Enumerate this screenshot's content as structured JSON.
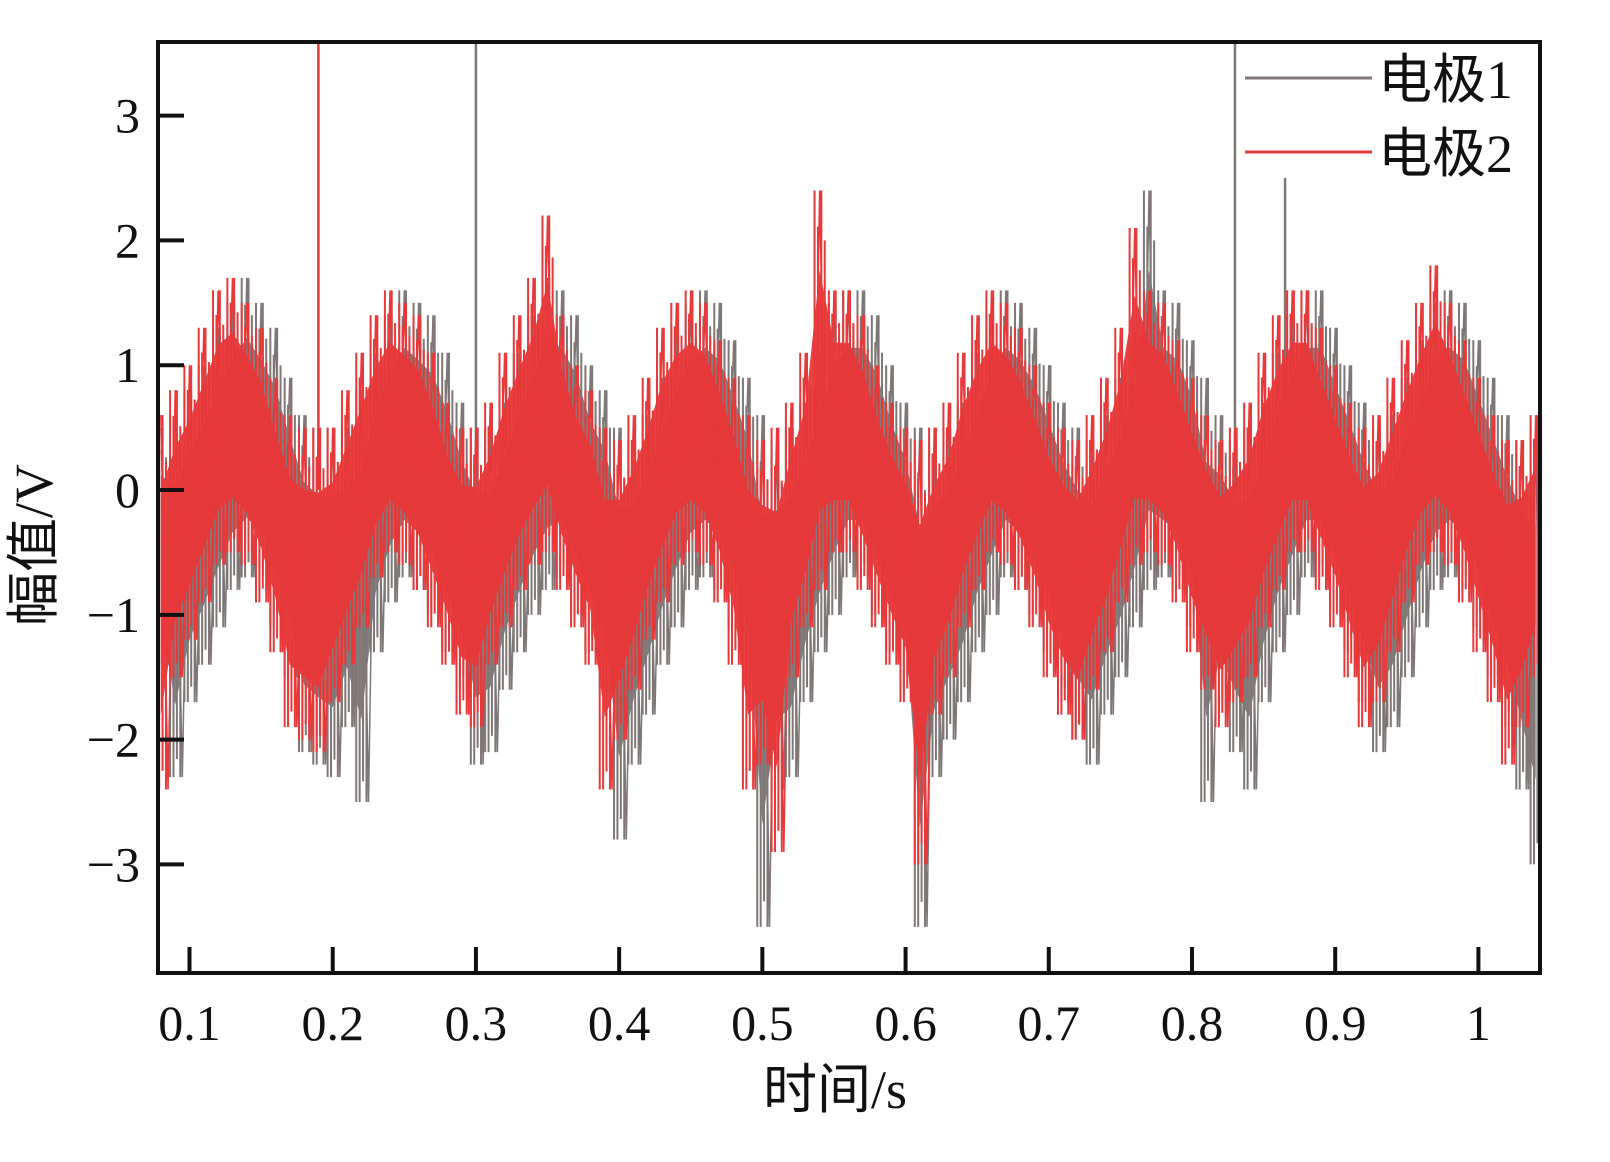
{
  "chart_data": {
    "type": "line",
    "title": "",
    "xlabel": "时间/s",
    "ylabel": "幅值/V",
    "xlim": [
      0.078,
      1.043
    ],
    "ylim": [
      -3.87,
      3.59
    ],
    "x_ticks": [
      0.1,
      0.2,
      0.3,
      0.4,
      0.5,
      0.6,
      0.7,
      0.8,
      0.9,
      1.0
    ],
    "x_tick_labels": [
      "0.1",
      "0.2",
      "0.3",
      "0.4",
      "0.5",
      "0.6",
      "0.7",
      "0.8",
      "0.9",
      "1"
    ],
    "y_ticks": [
      3,
      2,
      1,
      0,
      -1,
      -2,
      -3
    ],
    "y_tick_labels": [
      "3",
      "2",
      "1",
      "0",
      "−1",
      "−2",
      "−3"
    ],
    "grid": false,
    "legend_position": "top-right",
    "x_start": 0.08,
    "x_step": 0.01,
    "series": [
      {
        "name": "电极1",
        "color": "#7f7776",
        "envelope_max": [
          0.5,
          0.6,
          0.8,
          1.0,
          1.3,
          1.5,
          1.7,
          1.5,
          1.3,
          0.9,
          0.6,
          0.5,
          0.5,
          0.5,
          0.8,
          1.1,
          1.4,
          1.6,
          1.5,
          1.4,
          1.1,
          0.7,
          0.5,
          0.5,
          0.7,
          1.1,
          1.4,
          1.7,
          1.6,
          1.4,
          1.0,
          0.8,
          0.5,
          0.4,
          0.6,
          0.9,
          1.3,
          1.5,
          1.6,
          1.5,
          1.2,
          0.9,
          0.6,
          0.4,
          0.5,
          0.7,
          1.1,
          1.5,
          1.6,
          1.6,
          1.4,
          1.0,
          0.7,
          0.5,
          0.4,
          0.5,
          0.7,
          1.1,
          1.4,
          1.6,
          1.5,
          1.3,
          1.0,
          0.7,
          0.5,
          0.4,
          0.6,
          0.9,
          1.3,
          2.4,
          1.6,
          1.5,
          1.2,
          0.9,
          0.6,
          0.4,
          0.5,
          0.7,
          1.1,
          1.4,
          1.6,
          1.6,
          1.3,
          1.0,
          0.7,
          0.5,
          0.6,
          0.9,
          1.2,
          1.5,
          1.6,
          1.5,
          1.2,
          0.9,
          0.6,
          0.4,
          0.4
        ],
        "envelope_min": [
          -1.4,
          -2.3,
          -1.7,
          -1.4,
          -1.1,
          -0.8,
          -0.7,
          -0.8,
          -1.1,
          -1.5,
          -2.1,
          -2.2,
          -2.3,
          -1.9,
          -2.5,
          -1.3,
          -0.9,
          -0.7,
          -0.8,
          -1.0,
          -1.3,
          -1.6,
          -2.2,
          -2.1,
          -1.6,
          -1.3,
          -1.0,
          -0.8,
          -0.7,
          -1.0,
          -1.3,
          -1.6,
          -2.8,
          -2.2,
          -1.8,
          -1.4,
          -1.1,
          -0.8,
          -0.7,
          -0.8,
          -1.1,
          -1.6,
          -3.5,
          -2.4,
          -2.3,
          -1.7,
          -1.3,
          -1.0,
          -0.7,
          -0.7,
          -1.0,
          -1.3,
          -1.6,
          -3.5,
          -2.3,
          -2.0,
          -1.7,
          -1.3,
          -1.0,
          -0.7,
          -0.8,
          -1.0,
          -1.3,
          -1.7,
          -2.0,
          -2.2,
          -1.8,
          -1.5,
          -1.1,
          -0.8,
          -0.7,
          -0.8,
          -1.1,
          -2.5,
          -1.8,
          -2.1,
          -2.4,
          -1.7,
          -1.3,
          -1.0,
          -0.7,
          -0.7,
          -1.0,
          -1.3,
          -1.7,
          -2.1,
          -1.9,
          -1.5,
          -1.1,
          -0.8,
          -0.7,
          -0.8,
          -1.1,
          -1.5,
          -1.9,
          -2.4,
          -3.0
        ],
        "spikes": [
          {
            "x": 0.3,
            "y": 3.6
          },
          {
            "x": 0.83,
            "y": 3.6
          },
          {
            "x": 0.865,
            "y": 2.5
          }
        ]
      },
      {
        "name": "电极2",
        "color": "#e8383a",
        "envelope_max": [
          0.6,
          0.8,
          1.0,
          1.3,
          1.6,
          1.7,
          1.5,
          1.3,
          0.9,
          0.6,
          0.5,
          0.5,
          0.5,
          0.8,
          1.1,
          1.4,
          1.6,
          1.5,
          1.4,
          1.1,
          0.7,
          0.5,
          0.5,
          0.7,
          1.1,
          1.4,
          1.7,
          2.2,
          1.4,
          1.0,
          0.8,
          0.5,
          0.4,
          0.6,
          0.9,
          1.3,
          1.5,
          1.6,
          1.5,
          1.2,
          0.9,
          0.6,
          0.4,
          0.5,
          0.7,
          1.1,
          2.4,
          1.6,
          1.6,
          1.4,
          1.0,
          0.7,
          0.5,
          0.4,
          0.5,
          0.7,
          1.1,
          1.4,
          1.6,
          1.5,
          1.3,
          1.0,
          0.7,
          0.5,
          0.4,
          0.6,
          0.9,
          1.3,
          2.1,
          1.6,
          1.5,
          1.2,
          0.9,
          0.6,
          0.4,
          0.5,
          0.7,
          1.1,
          1.4,
          1.6,
          1.6,
          1.3,
          1.0,
          0.7,
          0.5,
          0.6,
          0.9,
          1.2,
          1.5,
          1.8,
          1.5,
          1.2,
          0.9,
          0.6,
          0.4,
          0.4,
          0.6
        ],
        "envelope_min": [
          -2.4,
          -1.5,
          -1.2,
          -0.9,
          -0.6,
          -0.5,
          -0.6,
          -0.9,
          -1.3,
          -1.9,
          -2.0,
          -2.1,
          -1.7,
          -1.4,
          -1.1,
          -0.7,
          -0.5,
          -0.6,
          -0.8,
          -1.1,
          -1.4,
          -1.8,
          -1.9,
          -1.4,
          -1.1,
          -0.8,
          -0.6,
          -0.5,
          -0.8,
          -1.1,
          -1.4,
          -2.4,
          -2.0,
          -1.6,
          -1.2,
          -0.9,
          -0.6,
          -0.5,
          -0.6,
          -0.9,
          -1.4,
          -2.4,
          -2.2,
          -2.9,
          -1.5,
          -1.1,
          -0.8,
          -0.5,
          -0.5,
          -0.8,
          -1.1,
          -1.4,
          -1.7,
          -3.0,
          -1.8,
          -1.5,
          -1.1,
          -0.8,
          -0.5,
          -0.6,
          -0.8,
          -1.1,
          -1.5,
          -1.8,
          -2.0,
          -1.6,
          -1.3,
          -0.9,
          -0.6,
          -0.5,
          -0.6,
          -0.9,
          -1.3,
          -1.6,
          -1.9,
          -1.7,
          -1.5,
          -1.1,
          -0.8,
          -0.5,
          -0.5,
          -0.8,
          -1.1,
          -1.5,
          -1.9,
          -1.7,
          -1.3,
          -0.9,
          -0.6,
          -0.5,
          -0.6,
          -0.9,
          -1.3,
          -1.7,
          -2.2,
          -1.9,
          -1.5
        ],
        "spikes": [
          {
            "x": 0.19,
            "y": 3.6
          }
        ]
      }
    ]
  }
}
